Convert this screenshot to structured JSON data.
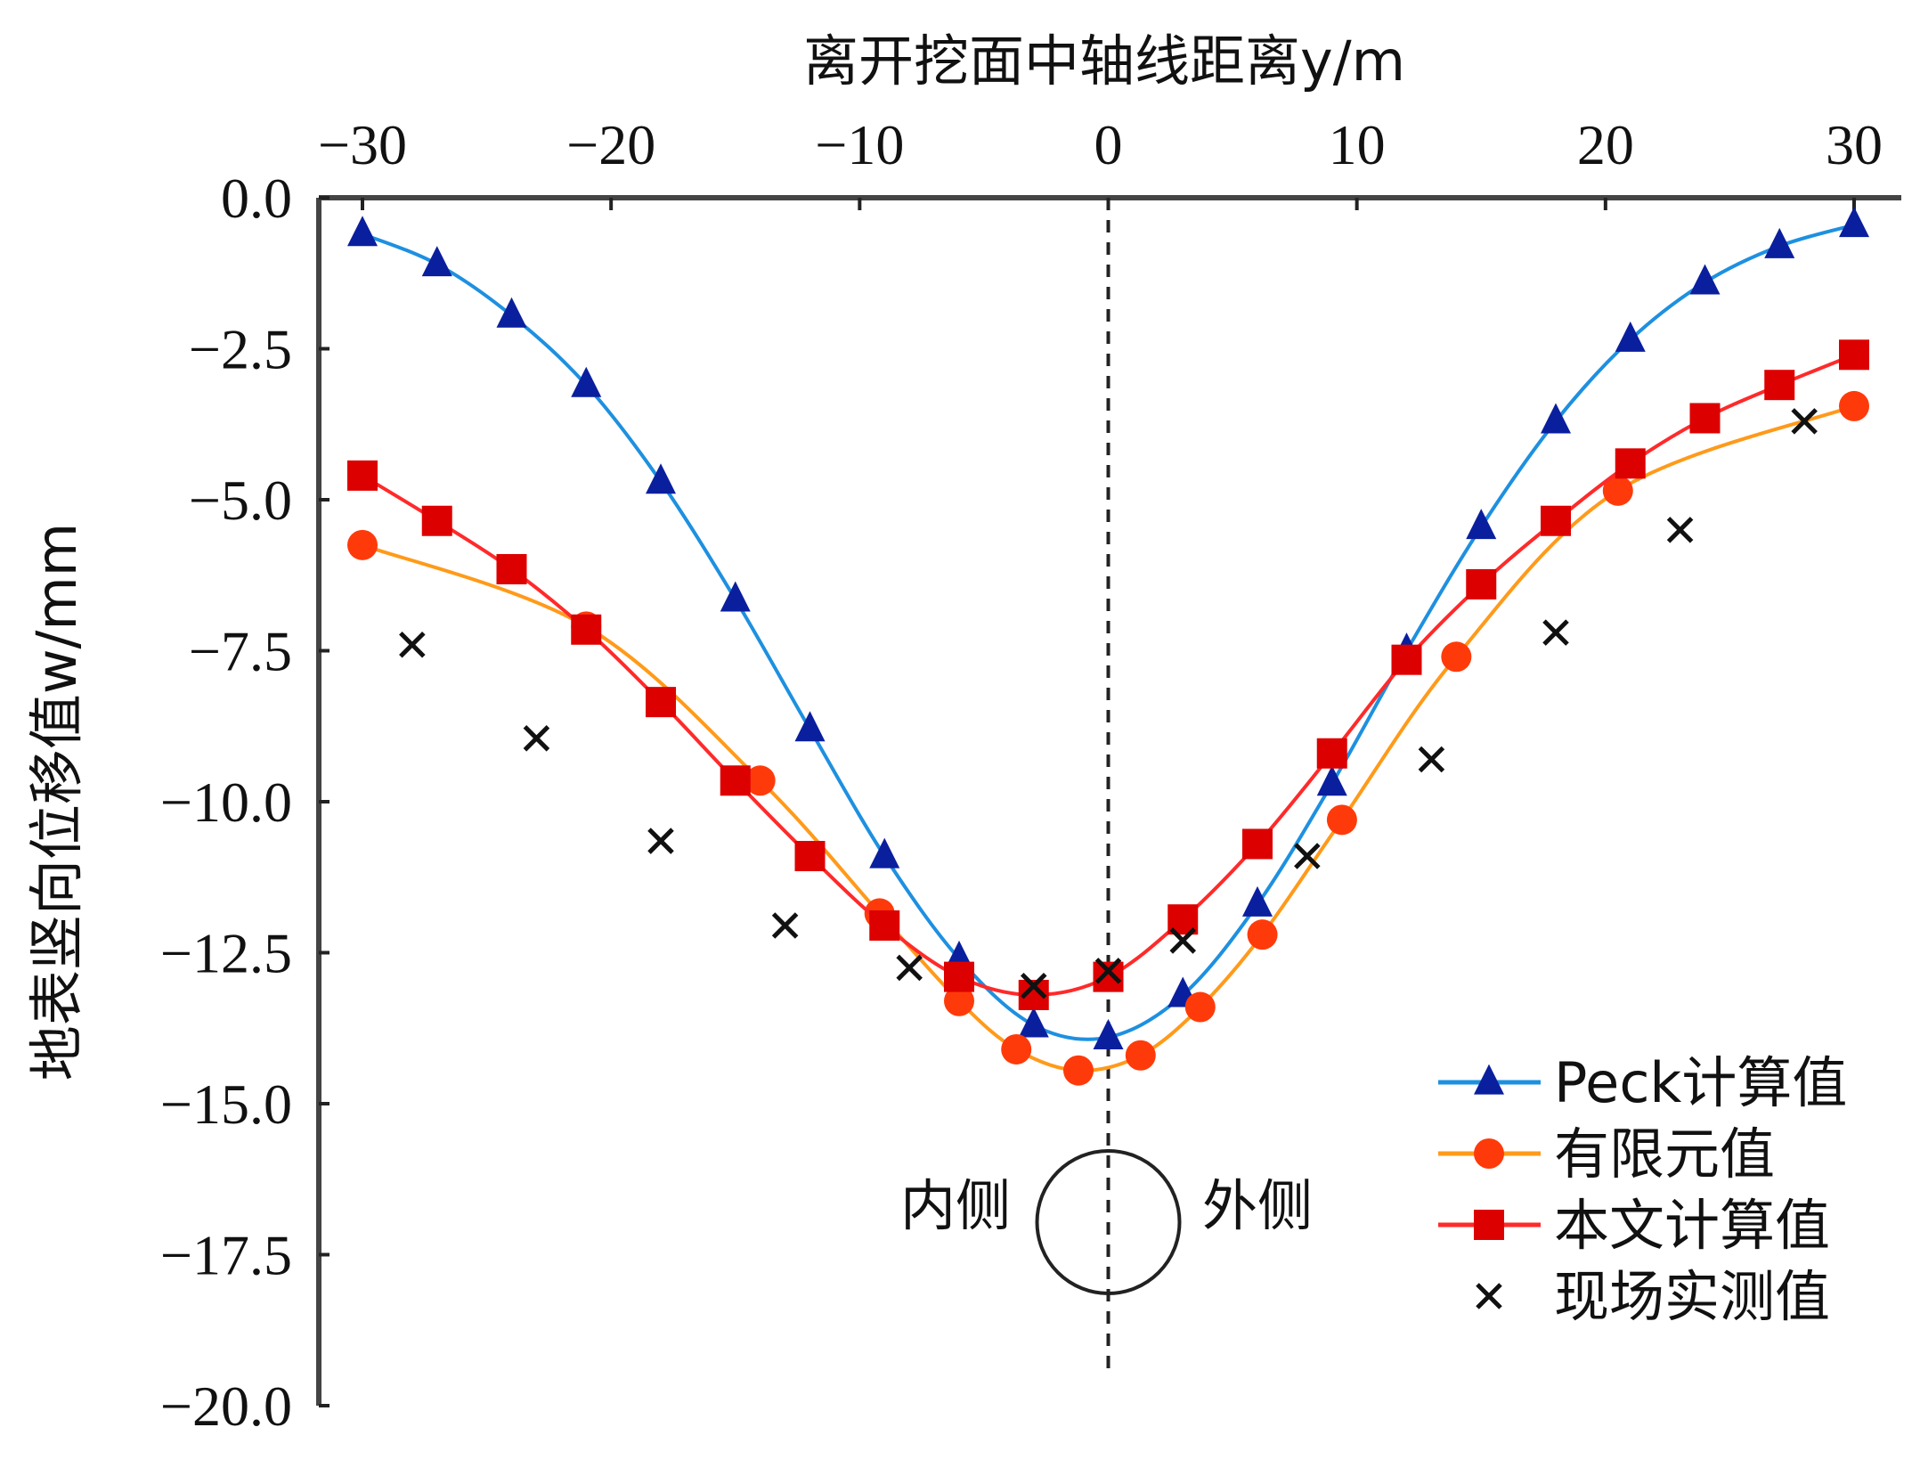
{
  "chart_data": {
    "type": "line",
    "title": "",
    "xlabel": "离开挖面中轴线距离y/m",
    "ylabel": "地表竖向位移值w/mm",
    "xlim": [
      -31.5,
      31.5
    ],
    "ylim": [
      -20.0,
      0.0
    ],
    "x_ticks": [
      "-30",
      "-20",
      "-10",
      "0",
      "10",
      "20",
      "30"
    ],
    "x_tick_values": [
      -30,
      -20,
      -10,
      0,
      10,
      20,
      30
    ],
    "y_ticks": [
      "0.0",
      "-2.5",
      "-5.0",
      "-7.5",
      "-10.0",
      "-12.5",
      "-15.0",
      "-17.5",
      "-20.0"
    ],
    "y_tick_values": [
      0,
      -2.5,
      -5,
      -7.5,
      -10,
      -12.5,
      -15,
      -17.5,
      -20
    ],
    "x_axis_position": "top",
    "grid": false,
    "legend_position": "bottom-right",
    "reference_line": {
      "x": 0,
      "style": "dashed"
    },
    "annotations": {
      "left": "内侧",
      "right": "外侧",
      "tunnel_symbol": "circle"
    },
    "series": [
      {
        "name": "Peck计算值",
        "color": "#1e90e0",
        "marker_color": "#0a1f9e",
        "marker": "triangle",
        "x": [
          -30,
          -27,
          -24,
          -21,
          -18,
          -15,
          -12,
          -9,
          -6,
          -3,
          0,
          3,
          6,
          9,
          12,
          15,
          18,
          21,
          24,
          27,
          30
        ],
        "y": [
          -0.6,
          -1.1,
          -1.95,
          -3.1,
          -4.7,
          -6.65,
          -8.8,
          -10.9,
          -12.6,
          -13.7,
          -13.9,
          -13.2,
          -11.7,
          -9.7,
          -7.5,
          -5.45,
          -3.7,
          -2.35,
          -1.4,
          -0.8,
          -0.45
        ]
      },
      {
        "name": "有限元值",
        "color": "#ff9a1a",
        "marker_color": "#ff3a0a",
        "marker": "circle",
        "x": [
          -30,
          -21,
          -14,
          -9.2,
          -6,
          -3.7,
          -1.2,
          1.3,
          3.7,
          6.2,
          9.4,
          14,
          20.5,
          30
        ],
        "y": [
          -5.75,
          -7.1,
          -9.65,
          -11.85,
          -13.3,
          -14.1,
          -14.45,
          -14.2,
          -13.4,
          -12.2,
          -10.3,
          -7.6,
          -4.85,
          -3.45
        ]
      },
      {
        "name": "本文计算值",
        "color": "#ff2a2a",
        "marker_color": "#dd0000",
        "marker": "square",
        "x": [
          -30,
          -27,
          -24,
          -21,
          -18,
          -15,
          -12,
          -9,
          -6,
          -3,
          0,
          3,
          6,
          9,
          12,
          15,
          18,
          21,
          24,
          27,
          30
        ],
        "y": [
          -4.6,
          -5.35,
          -6.15,
          -7.15,
          -8.35,
          -9.65,
          -10.9,
          -12.05,
          -12.9,
          -13.2,
          -12.9,
          -11.95,
          -10.7,
          -9.2,
          -7.65,
          -6.4,
          -5.35,
          -4.4,
          -3.65,
          -3.1,
          -2.6
        ]
      },
      {
        "name": "现场实测值",
        "color": "#111111",
        "marker_color": "#111111",
        "marker": "x",
        "x": [
          -28,
          -23,
          -18,
          -13,
          -8,
          -3,
          0,
          3,
          8,
          13,
          18,
          23,
          28
        ],
        "y": [
          -7.4,
          -8.95,
          -10.65,
          -12.05,
          -12.75,
          -13.05,
          -12.8,
          -12.3,
          -10.9,
          -9.3,
          -7.2,
          -5.5,
          -3.7
        ]
      }
    ]
  }
}
